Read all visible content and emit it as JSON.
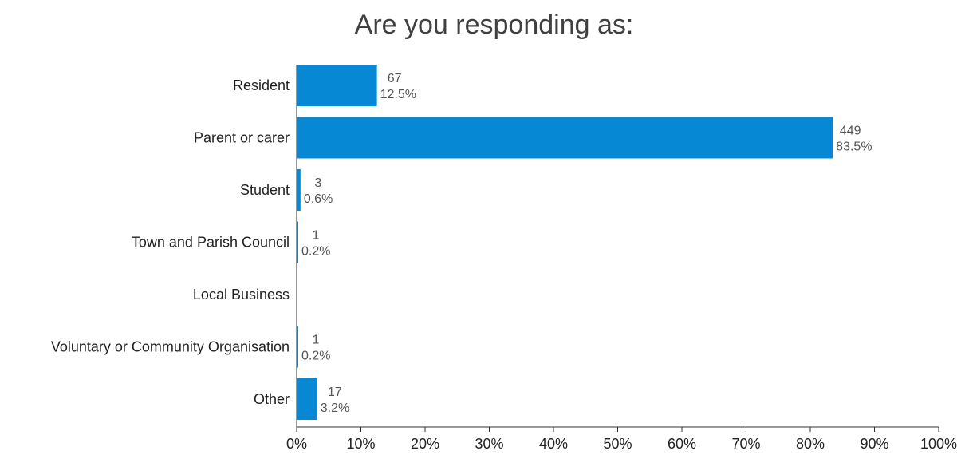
{
  "chart_data": {
    "type": "bar",
    "orientation": "horizontal",
    "title": "Are you responding as:",
    "categories": [
      "Resident",
      "Parent or carer",
      "Student",
      "Town and Parish Council",
      "Local Business",
      "Voluntary or Community Organisation",
      "Other"
    ],
    "counts": [
      "67",
      "449",
      "3",
      "1",
      "",
      "1",
      "17"
    ],
    "percent_labels": [
      "12.5%",
      "83.5%",
      "0.6%",
      "0.2%",
      "",
      "0.2%",
      "3.2%"
    ],
    "values": [
      12.5,
      83.5,
      0.6,
      0.2,
      0,
      0.2,
      3.2
    ],
    "xlim": [
      0,
      100
    ],
    "x_ticks": [
      "0%",
      "10%",
      "20%",
      "30%",
      "40%",
      "50%",
      "60%",
      "70%",
      "80%",
      "90%",
      "100%"
    ],
    "grid": false,
    "bar_color": "#0788d4"
  }
}
